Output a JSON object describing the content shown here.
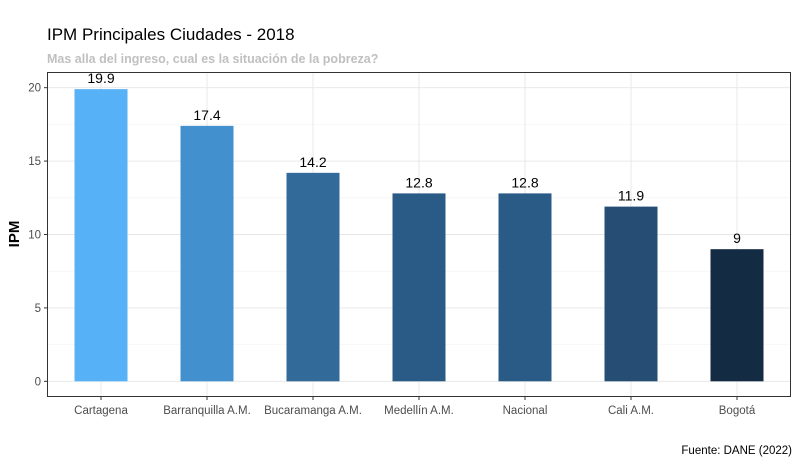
{
  "chart_data": {
    "type": "bar",
    "title": "IPM Principales Ciudades - 2018",
    "subtitle": "Mas alla del ingreso, cual es la situación de la pobreza?",
    "xlabel": "",
    "ylabel": "IPM",
    "caption": "Fuente: DANE (2022)",
    "categories": [
      "Cartagena",
      "Barranquilla A.M.",
      "Bucaramanga A.M.",
      "Medellín A.M.",
      "Nacional",
      "Cali A.M.",
      "Bogotá"
    ],
    "values": [
      19.9,
      17.4,
      14.2,
      12.8,
      12.8,
      11.9,
      9
    ],
    "data_labels": [
      "19.9",
      "17.4",
      "14.2",
      "12.8",
      "12.8",
      "11.9",
      "9"
    ],
    "bar_colors": [
      "#56B1F7",
      "#4390CE",
      "#326A9A",
      "#2A5B86",
      "#2A5B86",
      "#264D74",
      "#132B43"
    ],
    "ylim": [
      -1,
      21
    ],
    "yticks": [
      0,
      5,
      10,
      15,
      20
    ],
    "ytick_labels": [
      "0",
      "5",
      "10",
      "15",
      "20"
    ],
    "grid": true,
    "legend": "none"
  }
}
